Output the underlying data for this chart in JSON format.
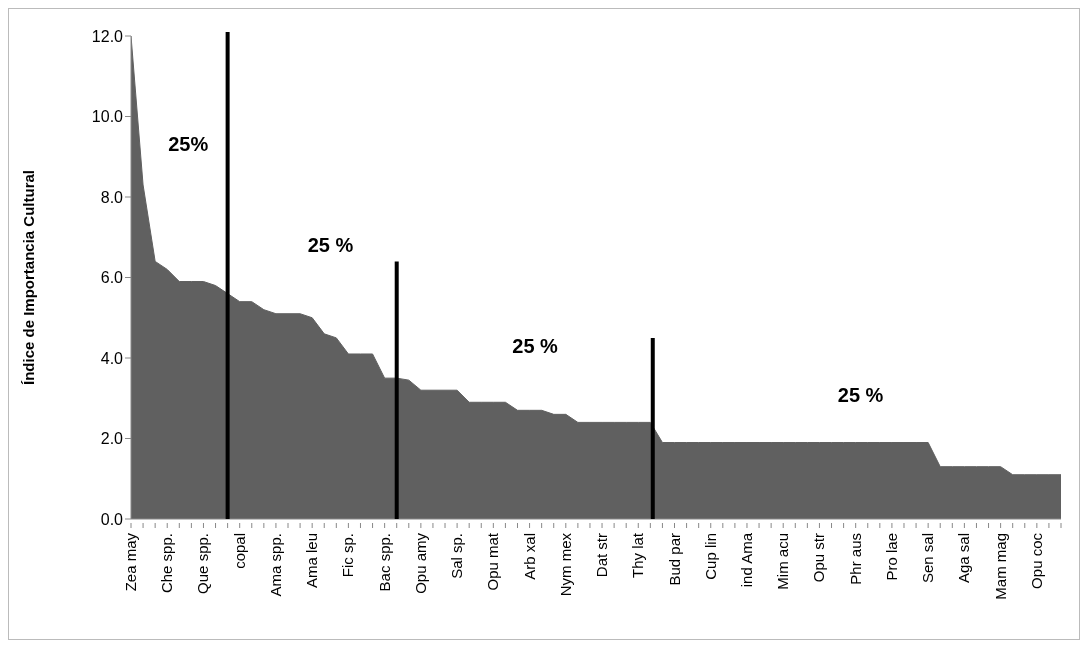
{
  "chart_data": {
    "type": "area",
    "ylabel": "Índice de Importancia Cultural",
    "categories": [
      "Zea may",
      null,
      null,
      "Che spp.",
      null,
      null,
      "Que spp.",
      null,
      null,
      "copal",
      null,
      null,
      "Ama spp.",
      null,
      null,
      "Ama leu",
      null,
      null,
      "Fic sp.",
      null,
      null,
      "Bac spp.",
      null,
      null,
      "Opu amy",
      null,
      null,
      "Sal sp.",
      null,
      null,
      "Opu mat",
      null,
      null,
      "Arb xal",
      null,
      null,
      "Nym mex",
      null,
      null,
      "Dat str",
      null,
      null,
      "Thy lat",
      null,
      null,
      "Bud par",
      null,
      null,
      "Cup lin",
      null,
      null,
      "ind Ama",
      null,
      null,
      "Mim acu",
      null,
      null,
      "Opu str",
      null,
      null,
      "Phr aus",
      null,
      null,
      "Pro lae",
      null,
      null,
      "Sen sal",
      null,
      null,
      "Aga sal",
      null,
      null,
      "Mam mag",
      null,
      null,
      "Opu coc",
      null,
      null
    ],
    "series": [
      {
        "color": "#606060",
        "values": [
          12.0,
          8.3,
          6.4,
          6.2,
          5.9,
          5.9,
          5.9,
          5.8,
          5.6,
          5.4,
          5.4,
          5.2,
          5.1,
          5.1,
          5.1,
          5.0,
          4.6,
          4.5,
          4.1,
          4.1,
          4.1,
          3.5,
          3.5,
          3.45,
          3.2,
          3.2,
          3.2,
          3.2,
          2.9,
          2.9,
          2.9,
          2.9,
          2.7,
          2.7,
          2.7,
          2.6,
          2.6,
          2.4,
          2.4,
          2.4,
          2.4,
          2.4,
          2.4,
          2.4,
          1.9,
          1.9,
          1.9,
          1.9,
          1.9,
          1.9,
          1.9,
          1.9,
          1.9,
          1.9,
          1.9,
          1.9,
          1.9,
          1.9,
          1.9,
          1.9,
          1.9,
          1.9,
          1.9,
          1.9,
          1.9,
          1.9,
          1.9,
          1.3,
          1.3,
          1.3,
          1.3,
          1.3,
          1.3,
          1.1,
          1.1,
          1.1,
          1.1,
          1.1
        ]
      }
    ],
    "ylim": [
      0,
      12
    ],
    "yticks": [
      {
        "value": 0,
        "label": "0.0"
      },
      {
        "value": 2,
        "label": "2.0"
      },
      {
        "value": 4,
        "label": "4.0"
      },
      {
        "value": 6,
        "label": "6.0"
      },
      {
        "value": 8,
        "label": "8.0"
      },
      {
        "value": 10,
        "label": "10.0"
      },
      {
        "value": 12,
        "label": "12.0"
      }
    ],
    "annotations": [
      "25%",
      "25 %",
      "25 %",
      "25 %"
    ],
    "legend": false
  }
}
